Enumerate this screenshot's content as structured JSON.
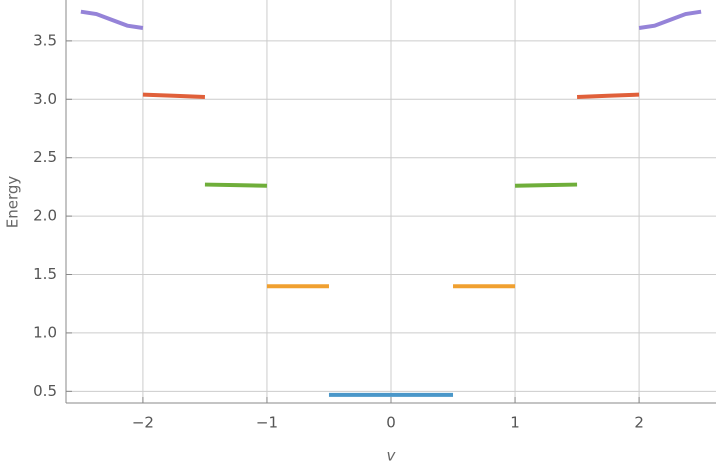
{
  "chart_data": {
    "type": "line",
    "x_label": "v",
    "y_label": "Energy",
    "xlim": [
      -2.62,
      2.62
    ],
    "ylim": [
      0.4,
      3.85
    ],
    "xticks": [
      {
        "value": -2,
        "label": "−2"
      },
      {
        "value": -1,
        "label": "−1"
      },
      0,
      1,
      2
    ],
    "yticks": [
      0.5,
      {
        "value": 1.0,
        "label": "1.0"
      },
      1.5,
      {
        "value": 2.0,
        "label": "2.0"
      },
      2.5,
      {
        "value": 3.0,
        "label": "3.0"
      },
      3.5
    ],
    "grid": true,
    "series": [
      {
        "color": "#4a97c9",
        "x": [
          -0.5,
          0,
          0.5
        ],
        "values": [
          0.47,
          0.47,
          0.47
        ]
      },
      {
        "color": "#f0a030",
        "x": [
          -1,
          -0.5,
          0,
          0.5,
          1
        ],
        "values": [
          1.4,
          1.4,
          null,
          1.4,
          1.4
        ]
      },
      {
        "color": "#6fae3a",
        "x": [
          -1.5,
          -1.25,
          -1,
          0,
          1,
          1.25,
          1.5
        ],
        "values": [
          2.27,
          2.265,
          2.26,
          null,
          2.26,
          2.265,
          2.27
        ]
      },
      {
        "color": "#e0603a",
        "x": [
          -2,
          -1.75,
          -1.5,
          0,
          1.5,
          1.75,
          2
        ],
        "values": [
          3.04,
          3.03,
          3.02,
          null,
          3.02,
          3.03,
          3.04
        ]
      },
      {
        "color": "#9583d8",
        "x": [
          -2.5,
          -2.375,
          -2.25,
          -2.125,
          -2,
          0,
          2,
          2.125,
          2.25,
          2.375,
          2.5
        ],
        "values": [
          3.75,
          3.73,
          3.68,
          3.63,
          3.61,
          null,
          3.61,
          3.63,
          3.68,
          3.73,
          3.75
        ]
      }
    ]
  }
}
